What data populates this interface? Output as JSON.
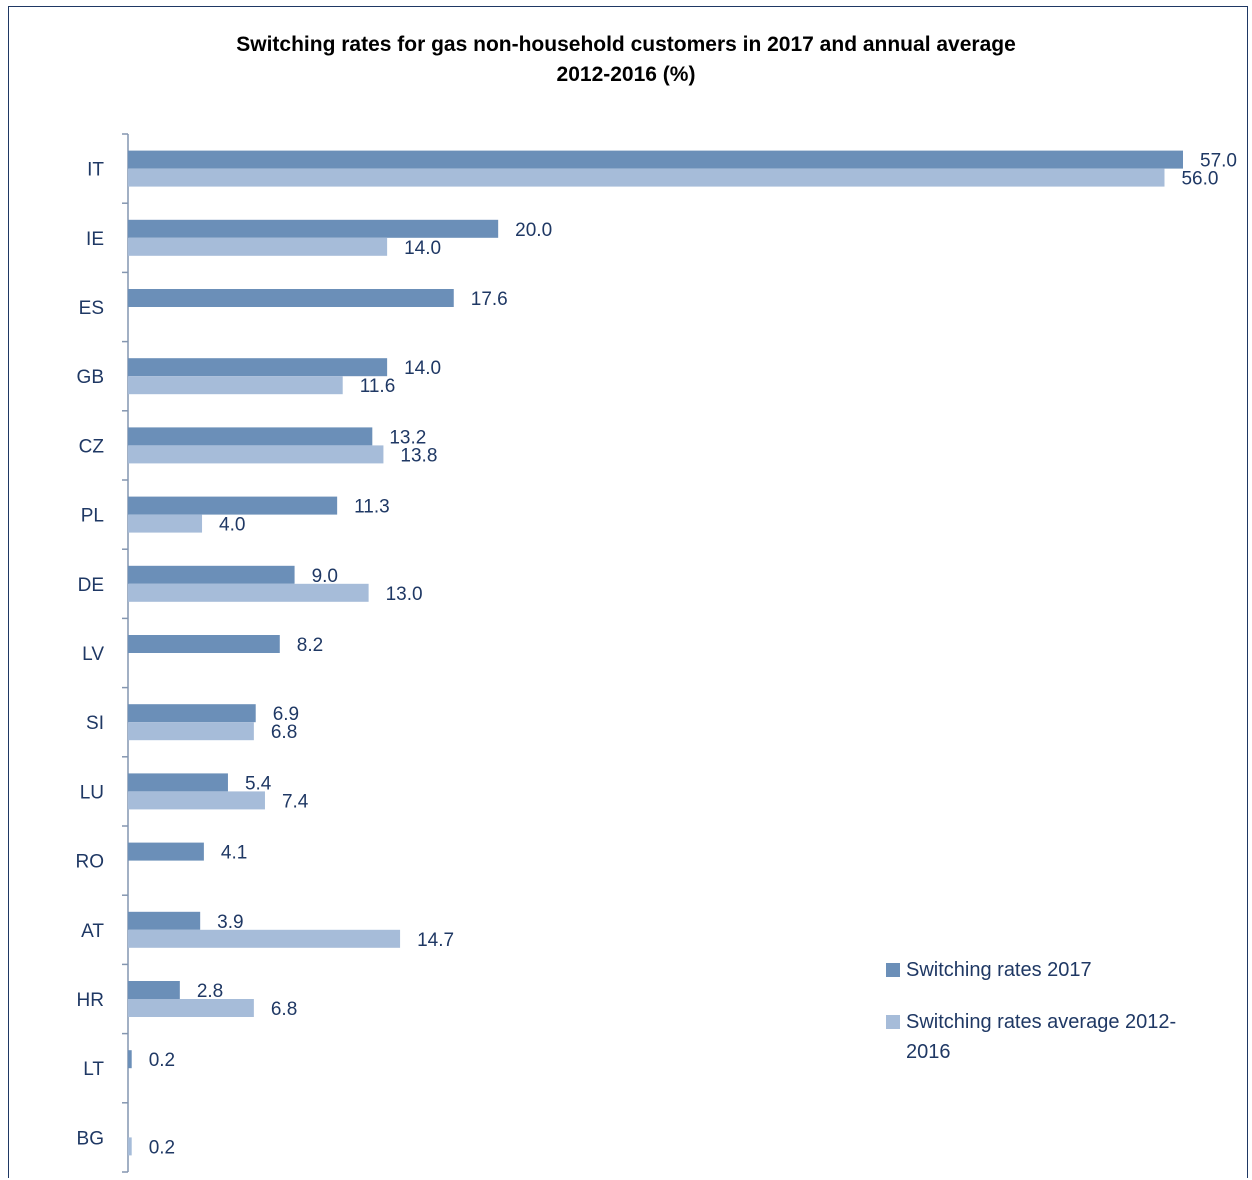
{
  "chart_data": {
    "type": "bar",
    "orientation": "horizontal",
    "title_lines": [
      "Switching rates for gas non-household customers in 2017 and annual average",
      "2012-2016 (%)"
    ],
    "categories": [
      "IT",
      "IE",
      "ES",
      "GB",
      "CZ",
      "PL",
      "DE",
      "LV",
      "SI",
      "LU",
      "RO",
      "AT",
      "HR",
      "LT",
      "BG"
    ],
    "series": [
      {
        "name": "Switching rates 2017",
        "color": "#6b8fb8",
        "values": [
          57.0,
          20.0,
          17.6,
          14.0,
          13.2,
          11.3,
          9.0,
          8.2,
          6.9,
          5.4,
          4.1,
          3.9,
          2.8,
          0.2,
          null
        ],
        "labels": [
          "57.0",
          "20.0",
          "17.6",
          "14.0",
          "13.2",
          "11.3",
          "9.0",
          "8.2",
          "6.9",
          "5.4",
          "4.1",
          "3.9",
          "2.8",
          "0.2",
          ""
        ]
      },
      {
        "name": "Switching rates average 2012-2016",
        "legend_lines": [
          "Switching rates average 2012-",
          "2016"
        ],
        "color": "#a6bcd9",
        "values": [
          56.0,
          14.0,
          null,
          11.6,
          13.8,
          4.0,
          13.0,
          null,
          6.8,
          7.4,
          null,
          14.7,
          6.8,
          null,
          0.2
        ],
        "labels": [
          "56.0",
          "14.0",
          "",
          "11.6",
          "13.8",
          "4.0",
          "13.0",
          "",
          "6.8",
          "7.4",
          "",
          "14.7",
          "6.8",
          "",
          "0.2"
        ]
      }
    ],
    "xlim": [
      0,
      57.0
    ],
    "grid": false,
    "legend_position": "bottom-right"
  }
}
